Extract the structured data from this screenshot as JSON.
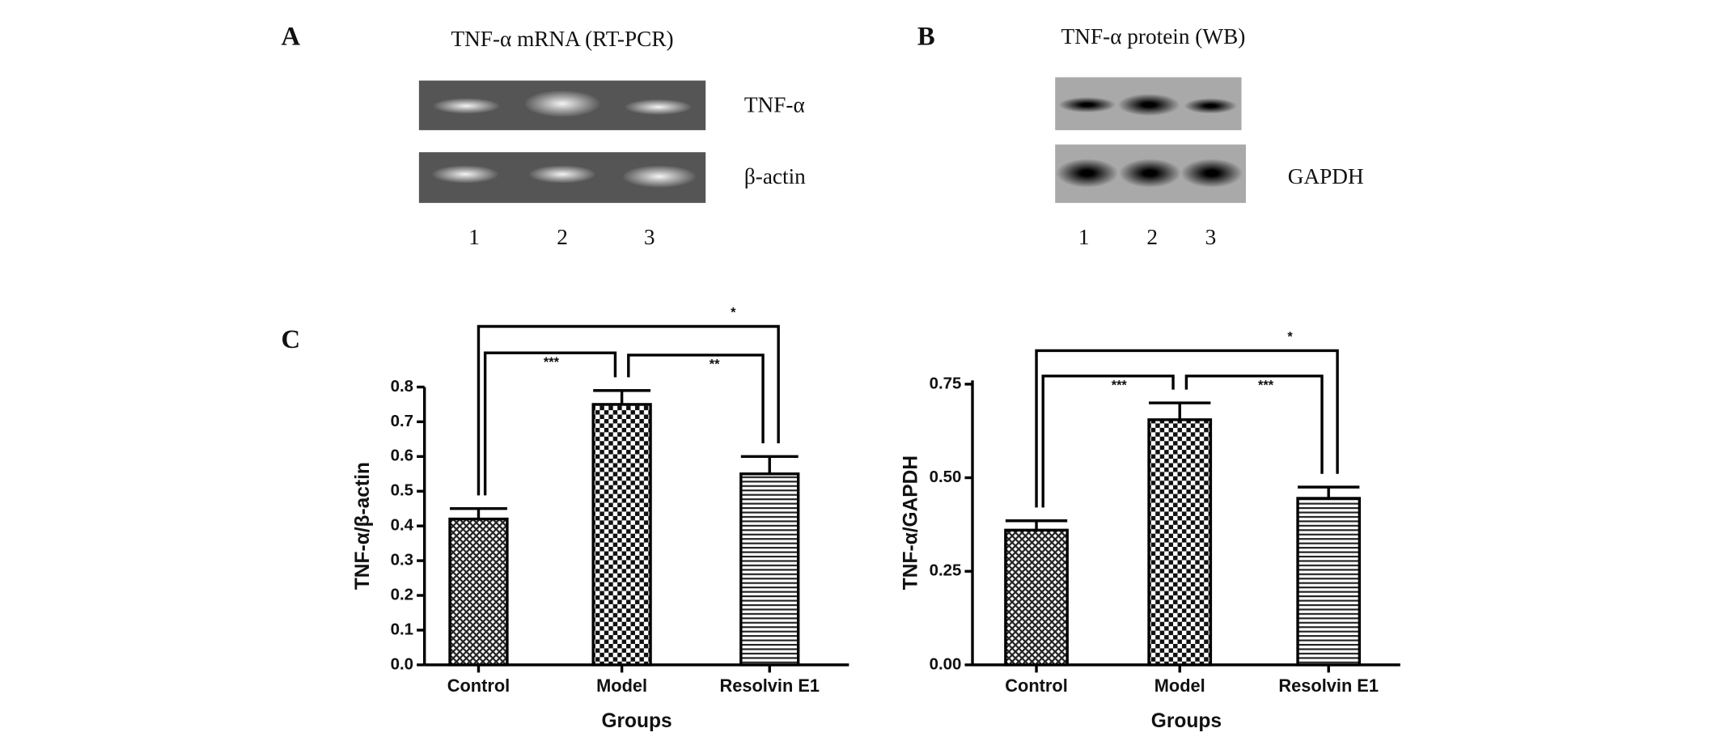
{
  "figure": {
    "panel_a": {
      "label": "A",
      "title": "TNF-α mRNA (RT-PCR)",
      "bands": [
        "TNF-α",
        "β-actin"
      ],
      "lanes": [
        "1",
        "2",
        "3"
      ]
    },
    "panel_b": {
      "label": "B",
      "title": "TNF-α protein (WB)",
      "bands": [
        "GAPDH"
      ],
      "lanes": [
        "1",
        "2",
        "3"
      ]
    },
    "panel_c": {
      "label": "C"
    }
  },
  "chart_data": [
    {
      "type": "bar",
      "y_label": "TNF-α/β-actin",
      "x_label": "Groups",
      "categories": [
        "Control",
        "Model",
        "Resolvin E1"
      ],
      "values": [
        0.42,
        0.75,
        0.55
      ],
      "errors": [
        0.03,
        0.04,
        0.05
      ],
      "ylim": [
        0,
        0.8
      ],
      "yticks": [
        {
          "value": 0,
          "label": "0.0"
        },
        0.1,
        0.2,
        0.3,
        0.4,
        0.5,
        0.6,
        0.7,
        0.8
      ],
      "annotations": [
        "***",
        "**",
        "*"
      ]
    },
    {
      "type": "bar",
      "y_label": "TNF-α/GAPDH",
      "x_label": "Groups",
      "categories": [
        "Control",
        "Model",
        "Resolvin E1"
      ],
      "values": [
        0.36,
        0.655,
        0.445
      ],
      "errors": [
        0.025,
        0.045,
        0.03
      ],
      "ylim": [
        0,
        0.76
      ],
      "yticks": [
        {
          "value": 0,
          "label": "0.00"
        },
        0.25,
        {
          "value": 0.5,
          "label": "0.50"
        },
        0.75
      ],
      "annotations": [
        "***",
        "***",
        "*"
      ]
    }
  ]
}
